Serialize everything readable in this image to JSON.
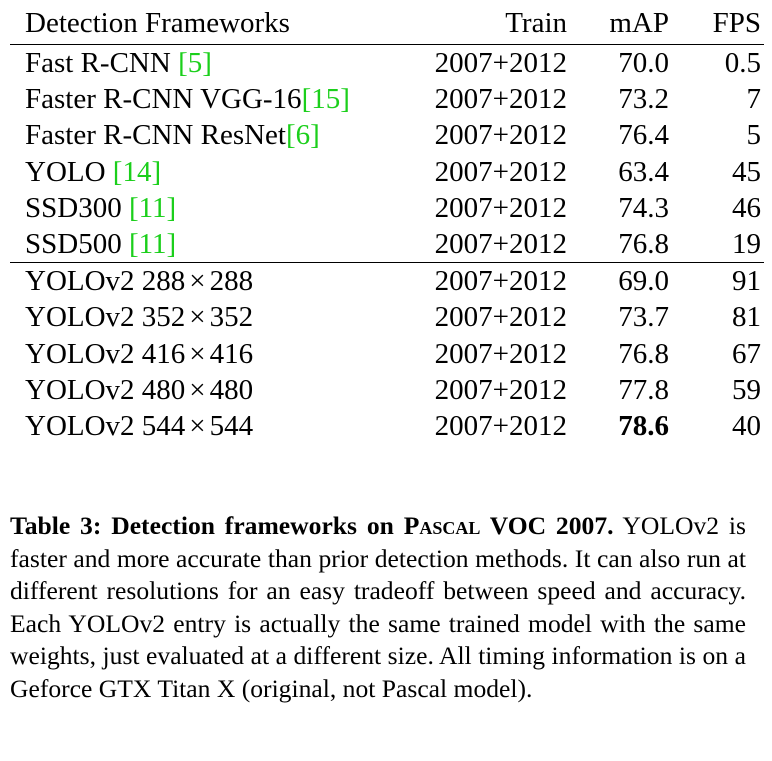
{
  "table": {
    "headers": {
      "name": "Detection Frameworks",
      "train": "Train",
      "map": "mAP",
      "fps": "FPS"
    },
    "group1": [
      {
        "name": "Fast R-CNN ",
        "cite": "[5]",
        "train": "2007+2012",
        "map": "70.0",
        "fps": "0.5"
      },
      {
        "name": "Faster R-CNN VGG-16",
        "cite": "[15]",
        "train": "2007+2012",
        "map": "73.2",
        "fps": "7"
      },
      {
        "name": "Faster R-CNN ResNet",
        "cite": "[6]",
        "train": "2007+2012",
        "map": "76.4",
        "fps": "5"
      },
      {
        "name": "YOLO ",
        "cite": "[14]",
        "train": "2007+2012",
        "map": "63.4",
        "fps": "45"
      },
      {
        "name": "SSD300 ",
        "cite": "[11]",
        "train": "2007+2012",
        "map": "74.3",
        "fps": "46"
      },
      {
        "name": "SSD500 ",
        "cite": "[11]",
        "train": "2007+2012",
        "map": "76.8",
        "fps": "19"
      }
    ],
    "group2": [
      {
        "model": "YOLOv2",
        "w": "288",
        "times": "×",
        "h": "288",
        "train": "2007+2012",
        "map": "69.0",
        "fps": "91"
      },
      {
        "model": "YOLOv2",
        "w": "352",
        "times": "×",
        "h": "352",
        "train": "2007+2012",
        "map": "73.7",
        "fps": "81"
      },
      {
        "model": "YOLOv2",
        "w": "416",
        "times": "×",
        "h": "416",
        "train": "2007+2012",
        "map": "76.8",
        "fps": "67"
      },
      {
        "model": "YOLOv2",
        "w": "480",
        "times": "×",
        "h": "480",
        "train": "2007+2012",
        "map": "77.8",
        "fps": "59"
      },
      {
        "model": "YOLOv2",
        "w": "544",
        "times": "×",
        "h": "544",
        "train": "2007+2012",
        "map": "78.6",
        "fps": "40",
        "best": true
      }
    ]
  },
  "caption": {
    "label": "Table 3:",
    "title_pre": "Detection frameworks on ",
    "title_sc": "Pascal",
    "title_post": " VOC 2007.",
    "body": "YOLOv2 is faster and more accurate than prior detection methods. It can also run at different resolutions for an easy tradeoff between speed and accuracy. Each YOLOv2 entry is actually the same trained model with the same weights, just evaluated at a different size. All timing information is on a Geforce GTX Titan X (original, not Pascal model)."
  }
}
